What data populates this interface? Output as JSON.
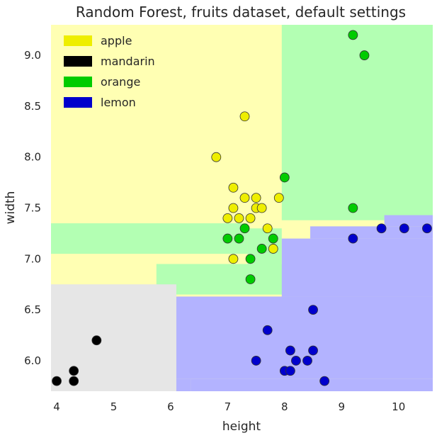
{
  "chart_data": {
    "type": "scatter",
    "title": "Random Forest, fruits dataset, default settings",
    "xlabel": "height",
    "ylabel": "width",
    "xlim": [
      3.9,
      10.6
    ],
    "ylim": [
      5.7,
      9.3
    ],
    "x_ticks": [
      4,
      5,
      6,
      7,
      8,
      9,
      10
    ],
    "x_tick_labels": [
      "4",
      "5",
      "6",
      "7",
      "8",
      "9",
      "10"
    ],
    "y_ticks": [
      6.0,
      6.5,
      7.0,
      7.5,
      8.0,
      8.5,
      9.0
    ],
    "y_tick_labels": [
      "6.0",
      "6.5",
      "7.0",
      "7.5",
      "8.0",
      "8.5",
      "9.0"
    ],
    "grid": false,
    "legend_position": "top-left",
    "series": [
      {
        "name": "apple",
        "color": "#eeee00",
        "region_color": "#ffffb3",
        "points": [
          [
            7.3,
            8.4
          ],
          [
            6.8,
            8.0
          ],
          [
            7.1,
            7.7
          ],
          [
            7.1,
            7.5
          ],
          [
            7.3,
            7.6
          ],
          [
            7.5,
            7.6
          ],
          [
            7.5,
            7.5
          ],
          [
            7.6,
            7.5
          ],
          [
            7.9,
            7.6
          ],
          [
            7.0,
            7.4
          ],
          [
            7.2,
            7.4
          ],
          [
            7.4,
            7.4
          ],
          [
            7.7,
            7.3
          ],
          [
            7.8,
            7.1
          ],
          [
            7.1,
            7.0
          ]
        ]
      },
      {
        "name": "mandarin",
        "color": "#000000",
        "region_color": "#e6e6e6",
        "points": [
          [
            4.0,
            5.8
          ],
          [
            4.3,
            5.9
          ],
          [
            4.3,
            5.8
          ],
          [
            4.7,
            6.2
          ]
        ]
      },
      {
        "name": "orange",
        "color": "#00cc00",
        "region_color": "#b3ffb3",
        "points": [
          [
            9.2,
            9.2
          ],
          [
            9.4,
            9.0
          ],
          [
            8.0,
            7.8
          ],
          [
            9.2,
            7.5
          ],
          [
            7.3,
            7.3
          ],
          [
            7.0,
            7.2
          ],
          [
            7.2,
            7.2
          ],
          [
            7.8,
            7.2
          ],
          [
            7.6,
            7.1
          ],
          [
            7.4,
            7.0
          ],
          [
            7.4,
            6.8
          ]
        ]
      },
      {
        "name": "lemon",
        "color": "#0000cc",
        "region_color": "#b3b3ff",
        "points": [
          [
            9.7,
            7.3
          ],
          [
            10.1,
            7.3
          ],
          [
            10.5,
            7.3
          ],
          [
            9.2,
            7.2
          ],
          [
            8.5,
            6.5
          ],
          [
            7.7,
            6.3
          ],
          [
            8.1,
            6.1
          ],
          [
            8.5,
            6.1
          ],
          [
            7.5,
            6.0
          ],
          [
            8.2,
            6.0
          ],
          [
            8.4,
            6.0
          ],
          [
            8.0,
            5.9
          ],
          [
            8.1,
            5.9
          ],
          [
            8.7,
            5.8
          ]
        ]
      }
    ],
    "regions": [
      {
        "class": "apple",
        "x": [
          3.9,
          10.6
        ],
        "y": [
          5.7,
          9.3
        ]
      },
      {
        "class": "orange",
        "x": [
          7.95,
          10.6
        ],
        "y": [
          7.38,
          9.3
        ]
      },
      {
        "class": "orange",
        "x": [
          3.9,
          7.35
        ],
        "y": [
          7.05,
          7.35
        ]
      },
      {
        "class": "orange",
        "x": [
          5.75,
          8.0
        ],
        "y": [
          6.65,
          6.95
        ]
      },
      {
        "class": "orange",
        "x": [
          7.35,
          7.95
        ],
        "y": [
          6.65,
          7.3
        ]
      },
      {
        "class": "mandarin",
        "x": [
          3.9,
          6.1
        ],
        "y": [
          5.7,
          6.75
        ]
      },
      {
        "class": "mandarin",
        "x": [
          6.1,
          6.35
        ],
        "y": [
          5.7,
          5.82
        ]
      },
      {
        "class": "lemon",
        "x": [
          6.1,
          10.6
        ],
        "y": [
          5.82,
          6.63
        ]
      },
      {
        "class": "lemon",
        "x": [
          6.35,
          6.1
        ],
        "y": [
          5.7,
          5.82
        ]
      },
      {
        "class": "lemon",
        "x": [
          6.35,
          10.6
        ],
        "y": [
          5.7,
          5.82
        ]
      },
      {
        "class": "lemon",
        "x": [
          7.95,
          10.6
        ],
        "y": [
          6.63,
          7.2
        ]
      },
      {
        "class": "lemon",
        "x": [
          8.45,
          10.6
        ],
        "y": [
          7.2,
          7.32
        ]
      },
      {
        "class": "lemon",
        "x": [
          9.75,
          10.6
        ],
        "y": [
          7.32,
          7.43
        ]
      }
    ]
  }
}
